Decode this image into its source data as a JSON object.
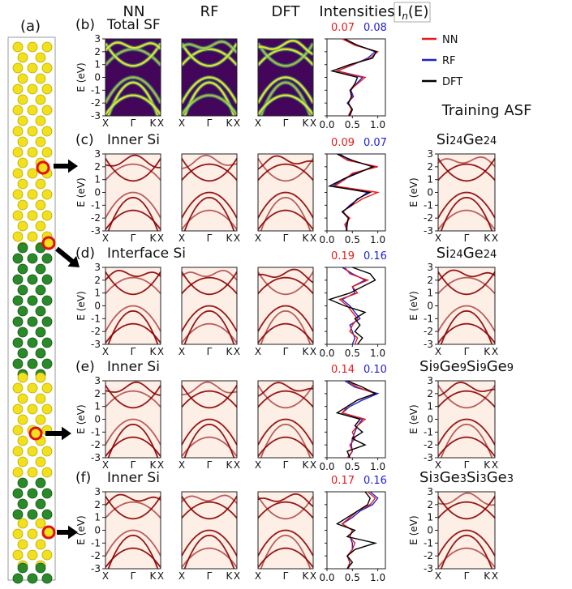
{
  "structure_label": "(a)",
  "headers": [
    "NN",
    "RF",
    "DFT",
    "Intensities"
  ],
  "intensity_header": {
    "base": "I",
    "sub": "n",
    "rest": "(E)"
  },
  "legend": [
    {
      "name": "NN",
      "color": "#e41a1c"
    },
    {
      "name": "RF",
      "color": "#1f1fd0"
    },
    {
      "name": "DFT",
      "color": "#000000"
    }
  ],
  "training_title": "Training ASF",
  "axes": {
    "ylabel": "E (eV)",
    "ylim": [
      -3,
      3
    ],
    "yticks": [
      -3,
      -2,
      -1,
      0,
      1,
      2,
      3
    ],
    "band_xticks": [
      "X",
      "Γ",
      "K",
      "X"
    ],
    "intensity_xlim": [
      0,
      1.15
    ],
    "intensity_xticks": [
      {
        "value": 0,
        "label": "0.0"
      },
      {
        "value": 0.5,
        "label": "0.5"
      },
      {
        "value": 1,
        "label": "1.0"
      }
    ],
    "energies": [
      -3,
      -2.5,
      -2,
      -1.5,
      -1,
      -0.5,
      0,
      0.5,
      1,
      1.5,
      2,
      2.5,
      3
    ]
  },
  "panels": [
    {
      "label": "(b)",
      "title": "Total SF",
      "style": "viridis",
      "errors": [
        "0.07",
        "0.08"
      ],
      "training": null,
      "series": [
        {
          "name": "NN",
          "values": [
            0.42,
            0.48,
            0.42,
            0.5,
            0.45,
            0.6,
            0.75,
            0.2,
            0.5,
            0.85,
            1.0,
            0.55,
            0.3
          ]
        },
        {
          "name": "RF",
          "values": [
            0.45,
            0.5,
            0.4,
            0.52,
            0.47,
            0.58,
            0.7,
            0.2,
            0.52,
            0.8,
            0.95,
            0.6,
            0.3
          ]
        },
        {
          "name": "DFT",
          "values": [
            0.44,
            0.5,
            0.42,
            0.48,
            0.46,
            0.55,
            0.6,
            0.1,
            0.45,
            0.9,
            0.97,
            0.6,
            0.35
          ]
        }
      ]
    },
    {
      "label": "(c)",
      "title": "Inner Si",
      "style": "reds",
      "errors": [
        "0.09",
        "0.07"
      ],
      "training": [
        {
          "el": "Si",
          "n": "24"
        },
        {
          "el": "Ge",
          "n": "24"
        }
      ],
      "series": [
        {
          "name": "NN",
          "values": [
            0.4,
            0.35,
            0.45,
            0.3,
            0.5,
            0.7,
            1.0,
            0.15,
            0.35,
            0.5,
            1.0,
            0.4,
            0.2
          ]
        },
        {
          "name": "RF",
          "values": [
            0.4,
            0.38,
            0.42,
            0.32,
            0.45,
            0.62,
            0.8,
            0.12,
            0.3,
            0.55,
            0.95,
            0.45,
            0.25
          ]
        },
        {
          "name": "DFT",
          "values": [
            0.38,
            0.4,
            0.42,
            0.3,
            0.48,
            0.6,
            0.85,
            0.05,
            0.3,
            0.6,
            0.9,
            0.5,
            0.2
          ]
        }
      ]
    },
    {
      "label": "(d)",
      "title": "Interface Si",
      "style": "reds",
      "errors": [
        "0.19",
        "0.16"
      ],
      "training": [
        {
          "el": "Si",
          "n": "24"
        },
        {
          "el": "Ge",
          "n": "24"
        }
      ],
      "series": [
        {
          "name": "NN",
          "values": [
            0.55,
            0.6,
            0.45,
            0.5,
            0.6,
            0.5,
            0.4,
            0.25,
            0.6,
            0.5,
            0.8,
            0.45,
            0.35
          ]
        },
        {
          "name": "RF",
          "values": [
            0.5,
            0.55,
            0.5,
            0.45,
            0.65,
            0.55,
            0.45,
            0.3,
            0.55,
            0.5,
            0.75,
            0.5,
            0.3
          ]
        },
        {
          "name": "DFT",
          "values": [
            0.6,
            0.7,
            0.55,
            0.65,
            0.55,
            0.75,
            0.35,
            0.05,
            0.45,
            0.7,
            0.95,
            0.85,
            0.5
          ]
        }
      ]
    },
    {
      "label": "(e)",
      "title": "Inner Si",
      "style": "reds",
      "errors": [
        "0.14",
        "0.10"
      ],
      "training": [
        {
          "el": "Si",
          "n": "9"
        },
        {
          "el": "Ge",
          "n": "9"
        },
        {
          "el": "Si",
          "n": "9"
        },
        {
          "el": "Ge",
          "n": "9"
        }
      ],
      "series": [
        {
          "name": "NN",
          "values": [
            0.4,
            0.5,
            0.45,
            0.55,
            0.5,
            0.6,
            0.75,
            0.3,
            0.4,
            0.6,
            0.95,
            0.6,
            0.4
          ]
        },
        {
          "name": "RF",
          "values": [
            0.42,
            0.5,
            0.48,
            0.5,
            0.55,
            0.6,
            0.7,
            0.3,
            0.45,
            0.7,
            1.0,
            0.55,
            0.35
          ]
        },
        {
          "name": "DFT",
          "values": [
            0.45,
            0.4,
            0.75,
            0.5,
            0.7,
            0.55,
            0.65,
            0.2,
            0.4,
            0.6,
            0.95,
            0.7,
            0.4
          ]
        }
      ]
    },
    {
      "label": "(f)",
      "title": "Inner Si",
      "style": "reds",
      "errors": [
        "0.17",
        "0.16"
      ],
      "training": [
        {
          "el": "Si",
          "n": "3"
        },
        {
          "el": "Ge",
          "n": "3"
        },
        {
          "el": "Si",
          "n": "3"
        },
        {
          "el": "Ge",
          "n": "3"
        }
      ],
      "series": [
        {
          "name": "NN",
          "values": [
            0.4,
            0.45,
            0.4,
            0.5,
            0.55,
            0.45,
            0.5,
            0.3,
            0.45,
            0.6,
            0.85,
            0.95,
            0.8
          ]
        },
        {
          "name": "RF",
          "values": [
            0.42,
            0.45,
            0.4,
            0.5,
            0.5,
            0.45,
            0.5,
            0.3,
            0.5,
            0.65,
            0.9,
            1.0,
            0.85
          ]
        },
        {
          "name": "DFT",
          "values": [
            0.4,
            0.5,
            0.4,
            0.55,
            0.95,
            0.4,
            0.55,
            0.2,
            0.4,
            0.6,
            0.8,
            0.85,
            0.75
          ]
        }
      ]
    }
  ]
}
